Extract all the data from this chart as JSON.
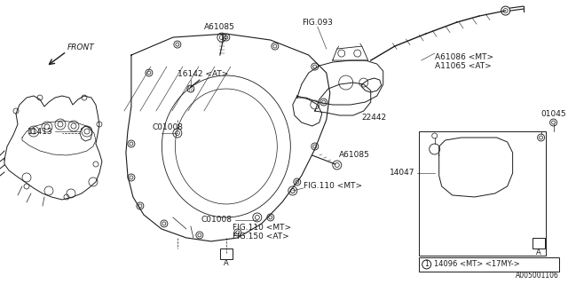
{
  "bg_color": "#ffffff",
  "line_color": "#1a1a1a",
  "labels": {
    "front": "FRONT",
    "fig093": "FIG.093",
    "a61085_top": "A61085",
    "a61086": "A61086 <MT>\nA11065 <AT>",
    "22442": "22442",
    "a61085_mid": "A61085",
    "16142": "16142 <AT>",
    "11413": "11413",
    "c01008_top": "C01008",
    "c01008_bot": "C01008",
    "fig110_mt1": "FIG.110 <MT>",
    "fig110_mt2": "FIG.110 <MT>",
    "fig150": "FIG.150 <AT>",
    "14047": "14047",
    "01045": "01045",
    "a_box": "A",
    "a_box2": "A",
    "legend_num": "1",
    "legend_text": "14096 <MT> <17MY->",
    "ref": "A005001106"
  },
  "font_size": 6.5,
  "font_family": "DejaVu Sans"
}
